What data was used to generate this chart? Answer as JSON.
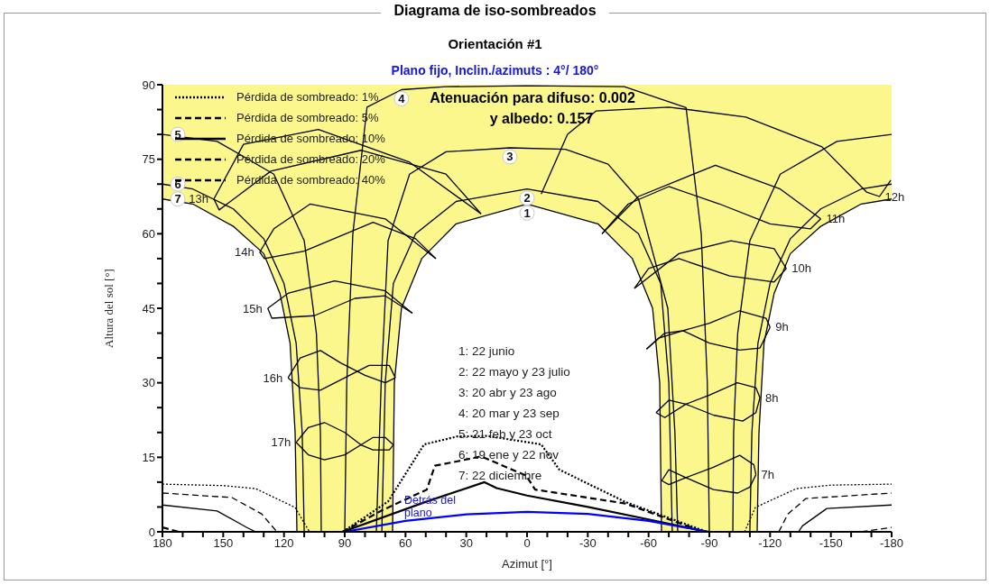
{
  "chart_data": {
    "type": "line",
    "title": "Diagrama de iso-sombreados",
    "subtitle": "Orientación #1",
    "xlabel": "Azimut [°]",
    "ylabel": "Altura del sol [°]",
    "xlim": [
      180,
      -180
    ],
    "xticks": [
      180,
      {
        "value": 170,
        "label": null
      },
      {
        "value": 160,
        "label": null
      },
      150,
      {
        "value": 140,
        "label": null
      },
      {
        "value": 130,
        "label": null
      },
      120,
      {
        "value": 110,
        "label": null
      },
      {
        "value": 100,
        "label": null
      },
      90,
      {
        "value": 80,
        "label": null
      },
      {
        "value": 70,
        "label": null
      },
      60,
      {
        "value": 50,
        "label": null
      },
      {
        "value": 40,
        "label": null
      },
      30,
      {
        "value": 20,
        "label": null
      },
      {
        "value": 10,
        "label": null
      },
      0,
      {
        "value": -10,
        "label": null
      },
      {
        "value": -20,
        "label": null
      },
      -30,
      {
        "value": -40,
        "label": null
      },
      {
        "value": -50,
        "label": null
      },
      -60,
      {
        "value": -70,
        "label": null
      },
      {
        "value": -80,
        "label": null
      },
      -90,
      {
        "value": -100,
        "label": null
      },
      {
        "value": -110,
        "label": null
      },
      -120,
      {
        "value": -130,
        "label": null
      },
      {
        "value": -140,
        "label": null
      },
      -150,
      {
        "value": -160,
        "label": null
      },
      {
        "value": -170,
        "label": null
      },
      -180
    ],
    "ylim": [
      0,
      90
    ],
    "yticks": [
      0,
      {
        "value": 5,
        "label": null
      },
      {
        "value": 10,
        "label": null
      },
      15,
      {
        "value": 20,
        "label": null
      },
      {
        "value": 25,
        "label": null
      },
      30,
      {
        "value": 35,
        "label": null
      },
      {
        "value": 40,
        "label": null
      },
      45,
      {
        "value": 50,
        "label": null
      },
      {
        "value": 55,
        "label": null
      },
      60,
      {
        "value": 65,
        "label": null
      },
      {
        "value": 70,
        "label": null
      },
      75,
      {
        "value": 80,
        "label": null
      },
      {
        "value": 85,
        "label": null
      },
      90
    ],
    "legend": "top left",
    "bands": [
      {
        "axis": "y",
        "from": 0,
        "to": 90,
        "color": "#fbf78c"
      }
    ],
    "series": [
      {
        "type": "area",
        "color": "#000000",
        "x": [
          66.4,
          65.5,
          62,
          52,
          35,
          0,
          -35,
          -52,
          -62,
          -65.5,
          -66.4
        ],
        "values": [
          0,
          30,
          45,
          55,
          62,
          66,
          62,
          55,
          45,
          30,
          0
        ]
      },
      {
        "type": "area",
        "color": "#000000",
        "x": [
          180,
          165,
          145,
          130,
          122,
          117,
          114.5,
          113.6
        ],
        "values": [
          67,
          66,
          61.5,
          56,
          48,
          38,
          20,
          0
        ]
      },
      {
        "type": "area",
        "color": "#000000",
        "x": [
          -113.6,
          -114.5,
          -117,
          -122,
          -130,
          -145,
          -165,
          -180
        ],
        "values": [
          0,
          20,
          38,
          48,
          56,
          61.5,
          66,
          67
        ]
      },
      {
        "type": "line",
        "color": "#000000",
        "x": [
          71.7,
          70,
          66,
          55,
          35,
          0,
          -35,
          -55,
          -66,
          -70,
          -71.7
        ],
        "values": [
          0,
          30,
          50,
          60,
          66.5,
          69,
          66.5,
          60,
          50,
          30,
          0
        ]
      },
      {
        "type": "line",
        "color": "#000000",
        "x": [
          74.4,
          72,
          68.6,
          58,
          40,
          8.5,
          -19,
          -40,
          -55,
          -69.5,
          -73,
          -74.4
        ],
        "values": [
          0,
          30,
          58.6,
          72,
          76.5,
          77.3,
          77,
          74,
          67,
          45,
          20,
          0
        ]
      },
      {
        "type": "line",
        "color": "#000000",
        "x": [
          90,
          89,
          86,
          79,
          62,
          40,
          0,
          -48,
          -78.5,
          -86,
          -89,
          -90
        ],
        "values": [
          0,
          30,
          60,
          85.5,
          89,
          89.6,
          89.8,
          89.6,
          85.4,
          60,
          30,
          0
        ]
      },
      {
        "type": "line",
        "color": "#000000",
        "x": [
          180,
          153,
          125,
          110,
          104,
          102,
          101.6
        ],
        "values": [
          80,
          78.6,
          72,
          58.6,
          40,
          20,
          0
        ]
      },
      {
        "type": "line",
        "color": "#000000",
        "x": [
          -101.6,
          -102,
          -104,
          -110,
          -125,
          -153,
          -180
        ],
        "values": [
          0,
          20,
          40,
          58.6,
          72,
          78.6,
          80
        ]
      },
      {
        "type": "line",
        "color": "#000000",
        "x": [
          180,
          165,
          145,
          130,
          120,
          114,
          111,
          110
        ],
        "values": [
          70,
          69,
          65,
          59,
          50,
          38,
          20,
          0
        ]
      },
      {
        "type": "line",
        "color": "#000000",
        "x": [
          -110,
          -111,
          -114,
          -120,
          -130,
          -145,
          -165,
          -180
        ],
        "values": [
          0,
          20,
          38,
          50,
          59,
          65,
          69,
          70
        ]
      },
      {
        "type": "line",
        "color": "#000000",
        "x": [
          22.7,
          58,
          103,
          140,
          154.6
        ],
        "values": [
          64,
          74.4,
          81,
          78,
          67
        ]
      },
      {
        "type": "line",
        "color": "#000000",
        "x": [
          154.6,
          152,
          126.5,
          82,
          40,
          22.7
        ],
        "values": [
          67,
          64.8,
          72.6,
          76.8,
          72,
          64
        ]
      },
      {
        "type": "line",
        "color": "#000000",
        "x": [
          45,
          70,
          107,
          125,
          132
        ],
        "values": [
          55,
          63,
          66,
          61,
          56.3
        ]
      },
      {
        "type": "line",
        "color": "#000000",
        "x": [
          132,
          129.7,
          110,
          76,
          55,
          45
        ],
        "values": [
          56.3,
          55,
          56.5,
          62.3,
          59,
          55
        ]
      },
      {
        "type": "line",
        "color": "#000000",
        "x": [
          56.6,
          70,
          95,
          118,
          128
        ],
        "values": [
          44,
          48.5,
          50.5,
          48,
          45
        ]
      },
      {
        "type": "line",
        "color": "#000000",
        "x": [
          128,
          126,
          105,
          85,
          70,
          56.6
        ],
        "values": [
          45,
          43,
          43.5,
          47,
          47.5,
          44
        ]
      },
      {
        "type": "line",
        "color": "#000000",
        "x": [
          118,
          112,
          102,
          92,
          80,
          70,
          65
        ],
        "values": [
          31,
          35,
          36.5,
          34,
          31.5,
          30,
          31
        ]
      },
      {
        "type": "line",
        "color": "#000000",
        "x": [
          65,
          68,
          78,
          90,
          102,
          112,
          118
        ],
        "values": [
          31,
          33.5,
          33.5,
          31,
          28.5,
          29,
          31
        ]
      },
      {
        "type": "line",
        "color": "#000000",
        "x": [
          114,
          108,
          100,
          90,
          82,
          76,
          68,
          66
        ],
        "values": [
          18,
          21,
          22,
          20,
          17.5,
          16.5,
          16.5,
          17.5
        ]
      },
      {
        "type": "line",
        "color": "#000000",
        "x": [
          66,
          70,
          76,
          82,
          90,
          100,
          108,
          114
        ],
        "values": [
          17.5,
          19,
          19,
          17.5,
          15.5,
          14.5,
          15.5,
          18
        ]
      },
      {
        "type": "line",
        "color": "#000000",
        "x": [
          -7,
          -20,
          -34,
          -70,
          -108,
          -145.6,
          -167.6,
          -174,
          -179.6
        ],
        "values": [
          68,
          80,
          84.7,
          85.5,
          83.5,
          77.5,
          68.4,
          67.5,
          70.8
        ]
      },
      {
        "type": "line",
        "color": "#000000",
        "x": [
          -37,
          -55,
          -93,
          -125,
          -145
        ],
        "values": [
          60,
          67.5,
          73.8,
          69,
          63
        ]
      },
      {
        "type": "line",
        "color": "#000000",
        "x": [
          -145,
          -140,
          -120,
          -95,
          -70,
          -50,
          -37
        ],
        "values": [
          63,
          61,
          62,
          66,
          69.5,
          66,
          60
        ]
      },
      {
        "type": "line",
        "color": "#000000",
        "x": [
          -53,
          -75,
          -100.7,
          -122,
          -128
        ],
        "values": [
          49,
          56,
          58.6,
          57,
          53
        ]
      },
      {
        "type": "line",
        "color": "#000000",
        "x": [
          -128,
          -122,
          -100,
          -75,
          -60,
          -53
        ],
        "values": [
          53,
          50.3,
          51.5,
          55,
          53,
          49
        ]
      },
      {
        "type": "line",
        "color": "#000000",
        "x": [
          -59,
          -68,
          -77,
          -90,
          -105,
          -118,
          -120
        ],
        "values": [
          36.8,
          40,
          40.5,
          42,
          44.5,
          43,
          41.2
        ]
      },
      {
        "type": "line",
        "color": "#000000",
        "x": [
          -120,
          -115,
          -105,
          -90,
          -77,
          -65,
          -59
        ],
        "values": [
          41.2,
          37,
          36.6,
          38,
          40.5,
          39,
          36.8
        ]
      },
      {
        "type": "line",
        "color": "#000000",
        "x": [
          -63.7,
          -70,
          -78.4,
          -90,
          -103.8,
          -113,
          -115
        ],
        "values": [
          24,
          26.5,
          25.7,
          27.5,
          30,
          29,
          27
        ]
      },
      {
        "type": "line",
        "color": "#000000",
        "x": [
          -115,
          -113,
          -106.5,
          -92,
          -78.4,
          -68,
          -63.7
        ],
        "values": [
          27,
          24,
          22.3,
          23.5,
          25.7,
          23,
          24
        ]
      },
      {
        "type": "line",
        "color": "#000000",
        "x": [
          -66.5,
          -70,
          -78.4,
          -92,
          -105,
          -112,
          -113
        ],
        "values": [
          10.3,
          12.5,
          10.9,
          13,
          15.4,
          13.5,
          11.5
        ]
      },
      {
        "type": "line",
        "color": "#000000",
        "x": [
          -113,
          -110,
          -104,
          -92,
          -78.4,
          -70,
          -66.5
        ],
        "values": [
          11.5,
          9,
          7.8,
          8.5,
          10.9,
          9.5,
          10.3
        ]
      },
      {
        "type": "line",
        "line_style": "dotted",
        "color": "#000000",
        "x": [
          180,
          150,
          134,
          114.5,
          107.4
        ],
        "values": [
          9.6,
          9.3,
          8.7,
          4.9,
          0
        ]
      },
      {
        "type": "line",
        "name": "Pérdida de sombreado: 1%",
        "line_style": "dotted",
        "color": "#000000",
        "x": [
          91,
          68.6,
          50.8,
          34.3,
          19.6,
          -7,
          -16,
          -48.6,
          -88.7
        ],
        "values": [
          0,
          6.1,
          17.6,
          19.2,
          19.3,
          17.6,
          12.5,
          6,
          0
        ]
      },
      {
        "type": "line",
        "line_style": "dotted",
        "color": "#000000",
        "x": [
          -107.4,
          -112.7,
          -133,
          -150,
          -180
        ],
        "values": [
          0,
          4.9,
          8.7,
          9.4,
          9.6
        ]
      },
      {
        "type": "line",
        "line_style": "dashed",
        "color": "#000000",
        "x": [
          180,
          145.7,
          131,
          123.5
        ],
        "values": [
          7.8,
          6.9,
          3.6,
          0
        ]
      },
      {
        "type": "line",
        "name": "Pérdida de sombreado: 5%",
        "line_style": "dashed",
        "color": "#000000",
        "x": [
          91,
          71.7,
          49.5,
          45.5,
          34.3,
          22.7,
          0.4,
          -4,
          -48.6,
          -87
        ],
        "values": [
          0,
          4.3,
          8.5,
          13.3,
          14.2,
          15.2,
          11.3,
          8.5,
          5.7,
          0
        ]
      },
      {
        "type": "line",
        "line_style": "dashed",
        "color": "#000000",
        "x": [
          -124.3,
          -128.8,
          -137.7,
          -180
        ],
        "values": [
          0,
          3.6,
          6.7,
          7.8
        ]
      },
      {
        "type": "line",
        "line_style": "solid",
        "color": "#000000",
        "x": [
          180,
          153,
          138.5,
          134
        ],
        "values": [
          5.4,
          4.2,
          0.9,
          0
        ]
      },
      {
        "type": "line",
        "name": "Pérdida de sombreado: 10%",
        "line_style": "solid",
        "color": "#000000",
        "x": [
          91,
          49.5,
          21,
          15,
          0,
          -30,
          -60,
          -89
        ],
        "values": [
          0,
          6.1,
          10,
          8.8,
          7.3,
          5,
          2.5,
          0
        ]
      },
      {
        "type": "line",
        "line_style": "solid",
        "color": "#000000",
        "x": [
          -134,
          -136,
          -148,
          -180
        ],
        "values": [
          0,
          1.2,
          4.7,
          5.4
        ]
      },
      {
        "type": "line",
        "name": "Pérdida de sombreado: 20%",
        "line_style": "dashed",
        "color": "#000000",
        "x": [
          180,
          172
        ],
        "values": [
          0.9,
          0
        ]
      },
      {
        "type": "line",
        "line_style": "dashed",
        "color": "#000000",
        "x": [
          -165,
          -180
        ],
        "values": [
          0,
          0.9
        ]
      },
      {
        "type": "line",
        "name": "Pérdida de sombreado: 40%",
        "line_style": "dashed",
        "color": "#000000"
      },
      {
        "type": "line",
        "color": "#0000ff",
        "x": [
          90,
          60,
          30,
          0,
          -30,
          -60,
          -90
        ],
        "values": [
          0,
          2.2,
          3.5,
          4,
          3.6,
          2.2,
          0
        ]
      }
    ],
    "annotations": [
      "Plano fijo, Inclin./azimuts : 4°/ 180°",
      "Atenuación para difuso: 0.002",
      "y albedo: 0.157",
      "1: 22 junio",
      "2: 22 mayo y 23 julio",
      "3: 20 abr y 23 ago",
      "4: 20 mar y 23 sep",
      "5: 21 feb y 23 oct",
      "6: 19 ene y 22 nov",
      "7: 22 diciembre",
      {
        "text": "1",
        "x": 0,
        "y": 66
      },
      {
        "text": "2",
        "x": 0,
        "y": 69
      },
      {
        "text": "3",
        "x": 8.5,
        "y": 77.3
      },
      {
        "text": "4",
        "x": 62,
        "y": 89
      },
      {
        "text": "5",
        "x": 180,
        "y": 80
      },
      {
        "text": "6",
        "x": 180,
        "y": 70
      },
      {
        "text": "7",
        "x": 180,
        "y": 67
      },
      {
        "text": "13h",
        "x": 154.6,
        "y": 67
      },
      {
        "text": "14h",
        "x": 132,
        "y": 56.3
      },
      {
        "text": "15h",
        "x": 128,
        "y": 45
      },
      {
        "text": "16h",
        "x": 118,
        "y": 31
      },
      {
        "text": "17h",
        "x": 114,
        "y": 18
      },
      {
        "text": "12h",
        "x": -174,
        "y": 67.5
      },
      {
        "text": "11h",
        "x": -145,
        "y": 63
      },
      {
        "text": "10h",
        "x": -128,
        "y": 53
      },
      {
        "text": "9h",
        "x": -120,
        "y": 41.2
      },
      {
        "text": "8h",
        "x": -115,
        "y": 27
      },
      {
        "text": "7h",
        "x": -113,
        "y": 11.5
      },
      "Detrás del plano"
    ]
  }
}
